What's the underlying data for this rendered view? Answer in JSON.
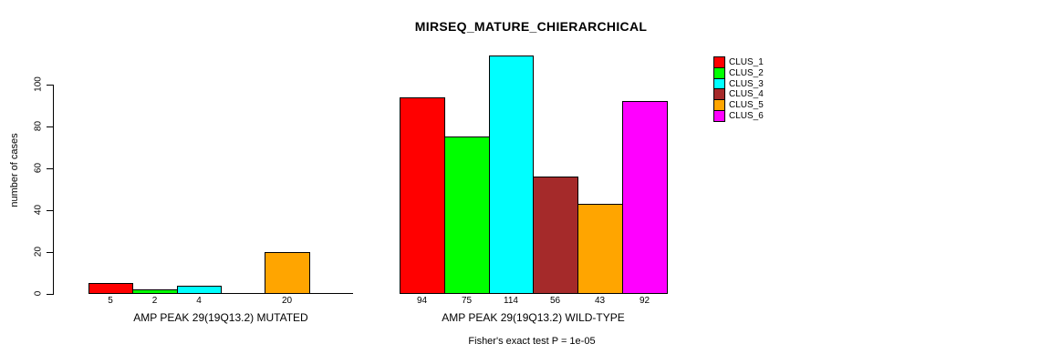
{
  "chart_data": {
    "type": "bar",
    "title": "MIRSEQ_MATURE_CHIERARCHICAL",
    "ylabel": "number of cases",
    "xlabel": "",
    "ylim": [
      0,
      115
    ],
    "yticks": [
      0,
      20,
      40,
      60,
      80,
      100
    ],
    "grid": false,
    "legend_position": "right",
    "categories": [
      "AMP PEAK 29(19Q13.2) MUTATED",
      "AMP PEAK 29(19Q13.2) WILD-TYPE"
    ],
    "series": [
      {
        "name": "CLUS_1",
        "color": "#FF0000",
        "values": [
          5,
          94
        ]
      },
      {
        "name": "CLUS_2",
        "color": "#00FF00",
        "values": [
          2,
          75
        ]
      },
      {
        "name": "CLUS_3",
        "color": "#00FFFF",
        "values": [
          4,
          114
        ]
      },
      {
        "name": "CLUS_4",
        "color": "#A52A2A",
        "values": [
          0,
          56
        ]
      },
      {
        "name": "CLUS_5",
        "color": "#FFA500",
        "values": [
          20,
          43
        ]
      },
      {
        "name": "CLUS_6",
        "color": "#FF00FF",
        "values": [
          0,
          92
        ]
      }
    ],
    "annotation": "Fisher's exact test P = 1e-05",
    "axis_color": "#000000"
  }
}
